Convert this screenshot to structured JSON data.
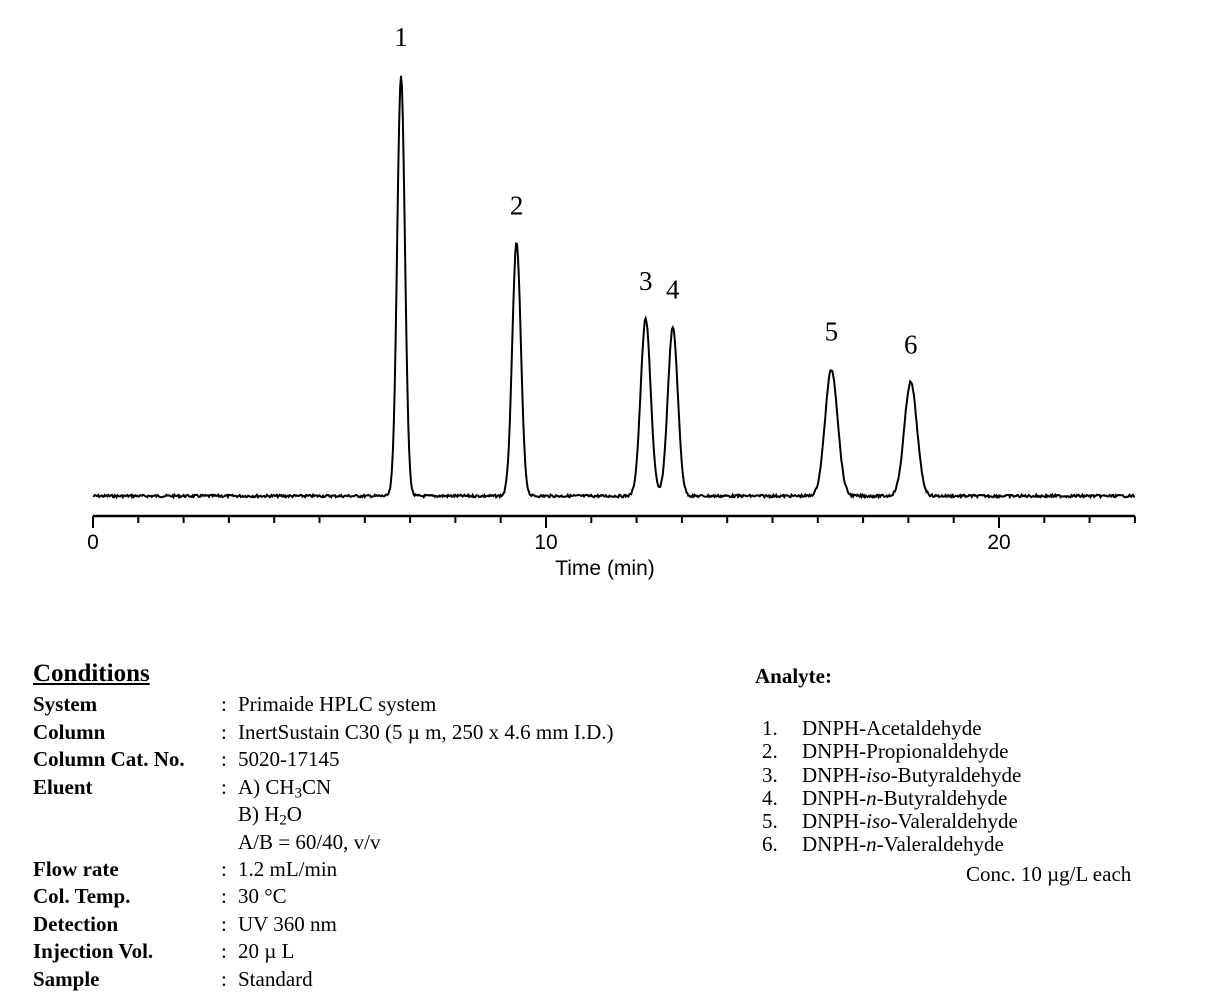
{
  "chart_data": {
    "type": "line",
    "title": "",
    "xlabel": "Time (min)",
    "ylabel": "",
    "xlim": [
      0,
      23
    ],
    "xticks_major": [
      0,
      10,
      20
    ],
    "xticks_minor_step": 1,
    "baseline": 0,
    "ylim": [
      0,
      1.0
    ],
    "grid": false,
    "series": [
      {
        "peaks": [
          {
            "label": "1",
            "time": 6.8,
            "height": 1.0,
            "sigma": 0.085
          },
          {
            "label": "2",
            "time": 9.35,
            "height": 0.6,
            "sigma": 0.095
          },
          {
            "label": "3",
            "time": 12.2,
            "height": 0.42,
            "sigma": 0.11
          },
          {
            "label": "4",
            "time": 12.8,
            "height": 0.4,
            "sigma": 0.11
          },
          {
            "label": "5",
            "time": 16.3,
            "height": 0.3,
            "sigma": 0.14
          },
          {
            "label": "6",
            "time": 18.05,
            "height": 0.27,
            "sigma": 0.14
          }
        ]
      }
    ]
  },
  "conditions": {
    "title": "Conditions",
    "rows": [
      {
        "label": "System",
        "value": "Primaide HPLC system"
      },
      {
        "label": "Column",
        "value": "InertSustain C30  (5 µ m, 250 x 4.6 mm I.D.)"
      },
      {
        "label": "Column Cat. No.",
        "value": "5020-17145"
      },
      {
        "label": "Eluent",
        "value_a_prefix": "A) CH",
        "value_a_sub": "3",
        "value_a_suffix": "CN",
        "value_b_prefix": "B) H",
        "value_b_sub": "2",
        "value_b_suffix": "O",
        "value_ratio": "A/B = 60/40, v/v"
      },
      {
        "label": "Flow rate",
        "value": "1.2 mL/min"
      },
      {
        "label": "Col. Temp.",
        "value": "30 °C"
      },
      {
        "label": "Detection",
        "value": "UV 360 nm"
      },
      {
        "label": "Injection Vol.",
        "value": "20  µ L"
      },
      {
        "label": "Sample",
        "value": "Standard"
      }
    ]
  },
  "analyte": {
    "title": "Analyte:",
    "items": [
      {
        "num": "1.",
        "name": "DNPH-Acetaldehyde"
      },
      {
        "num": "2.",
        "name": "DNPH-Propionaldehyde"
      },
      {
        "num": "3.",
        "name_prefix": "DNPH-",
        "name_italic": "iso",
        "name_suffix": "-Butyraldehyde"
      },
      {
        "num": "4.",
        "name_prefix": "DNPH-",
        "name_italic": "n",
        "name_suffix": "-Butyraldehyde"
      },
      {
        "num": "5.",
        "name_prefix": "DNPH-",
        "name_italic": "iso",
        "name_suffix": "-Valeraldehyde"
      },
      {
        "num": "6.",
        "name_prefix": "DNPH-",
        "name_italic": "n",
        "name_suffix": "-Valeraldehyde"
      }
    ],
    "conc": "Conc. 10 µg/L each"
  }
}
